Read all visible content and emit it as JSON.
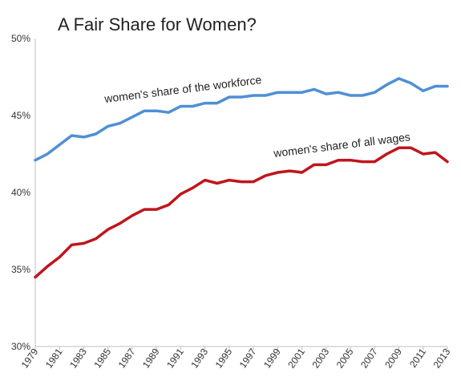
{
  "chart_data": {
    "type": "line",
    "title": "A Fair Share for Women?",
    "xlabel": "",
    "ylabel": "",
    "x": [
      1979,
      1980,
      1981,
      1982,
      1983,
      1984,
      1985,
      1986,
      1987,
      1988,
      1989,
      1990,
      1991,
      1992,
      1993,
      1994,
      1995,
      1996,
      1997,
      1998,
      1999,
      2000,
      2001,
      2002,
      2003,
      2004,
      2005,
      2006,
      2007,
      2008,
      2009,
      2010,
      2011,
      2012,
      2013
    ],
    "x_tick_labels": [
      "1979",
      "1981",
      "1983",
      "1985",
      "1987",
      "1989",
      "1991",
      "1993",
      "1995",
      "1997",
      "1999",
      "2001",
      "2003",
      "2005",
      "2007",
      "2009",
      "2011",
      "2013"
    ],
    "ylim": [
      30,
      50
    ],
    "y_ticks": [
      30,
      35,
      40,
      45,
      50
    ],
    "y_tick_labels": [
      "30%",
      "35%",
      "40%",
      "45%",
      "50%"
    ],
    "grid": false,
    "legend": "none",
    "series": [
      {
        "name": "women's share of the workforce",
        "color": "#4f8fd6",
        "values": [
          42.1,
          42.5,
          43.1,
          43.7,
          43.6,
          43.8,
          44.3,
          44.5,
          44.9,
          45.3,
          45.3,
          45.2,
          45.6,
          45.6,
          45.8,
          45.8,
          46.2,
          46.2,
          46.3,
          46.3,
          46.5,
          46.5,
          46.5,
          46.7,
          46.4,
          46.5,
          46.3,
          46.3,
          46.5,
          47.0,
          47.4,
          47.1,
          46.6,
          46.9,
          46.9
        ]
      },
      {
        "name": "women's share of all wages",
        "color": "#c0151c",
        "values": [
          34.5,
          35.2,
          35.8,
          36.6,
          36.7,
          37.0,
          37.6,
          38.0,
          38.5,
          38.9,
          38.9,
          39.2,
          39.9,
          40.3,
          40.8,
          40.6,
          40.8,
          40.7,
          40.7,
          41.1,
          41.3,
          41.4,
          41.3,
          41.8,
          41.8,
          42.1,
          42.1,
          42.0,
          42.0,
          42.5,
          42.9,
          42.9,
          42.5,
          42.6,
          42.0
        ]
      }
    ]
  }
}
